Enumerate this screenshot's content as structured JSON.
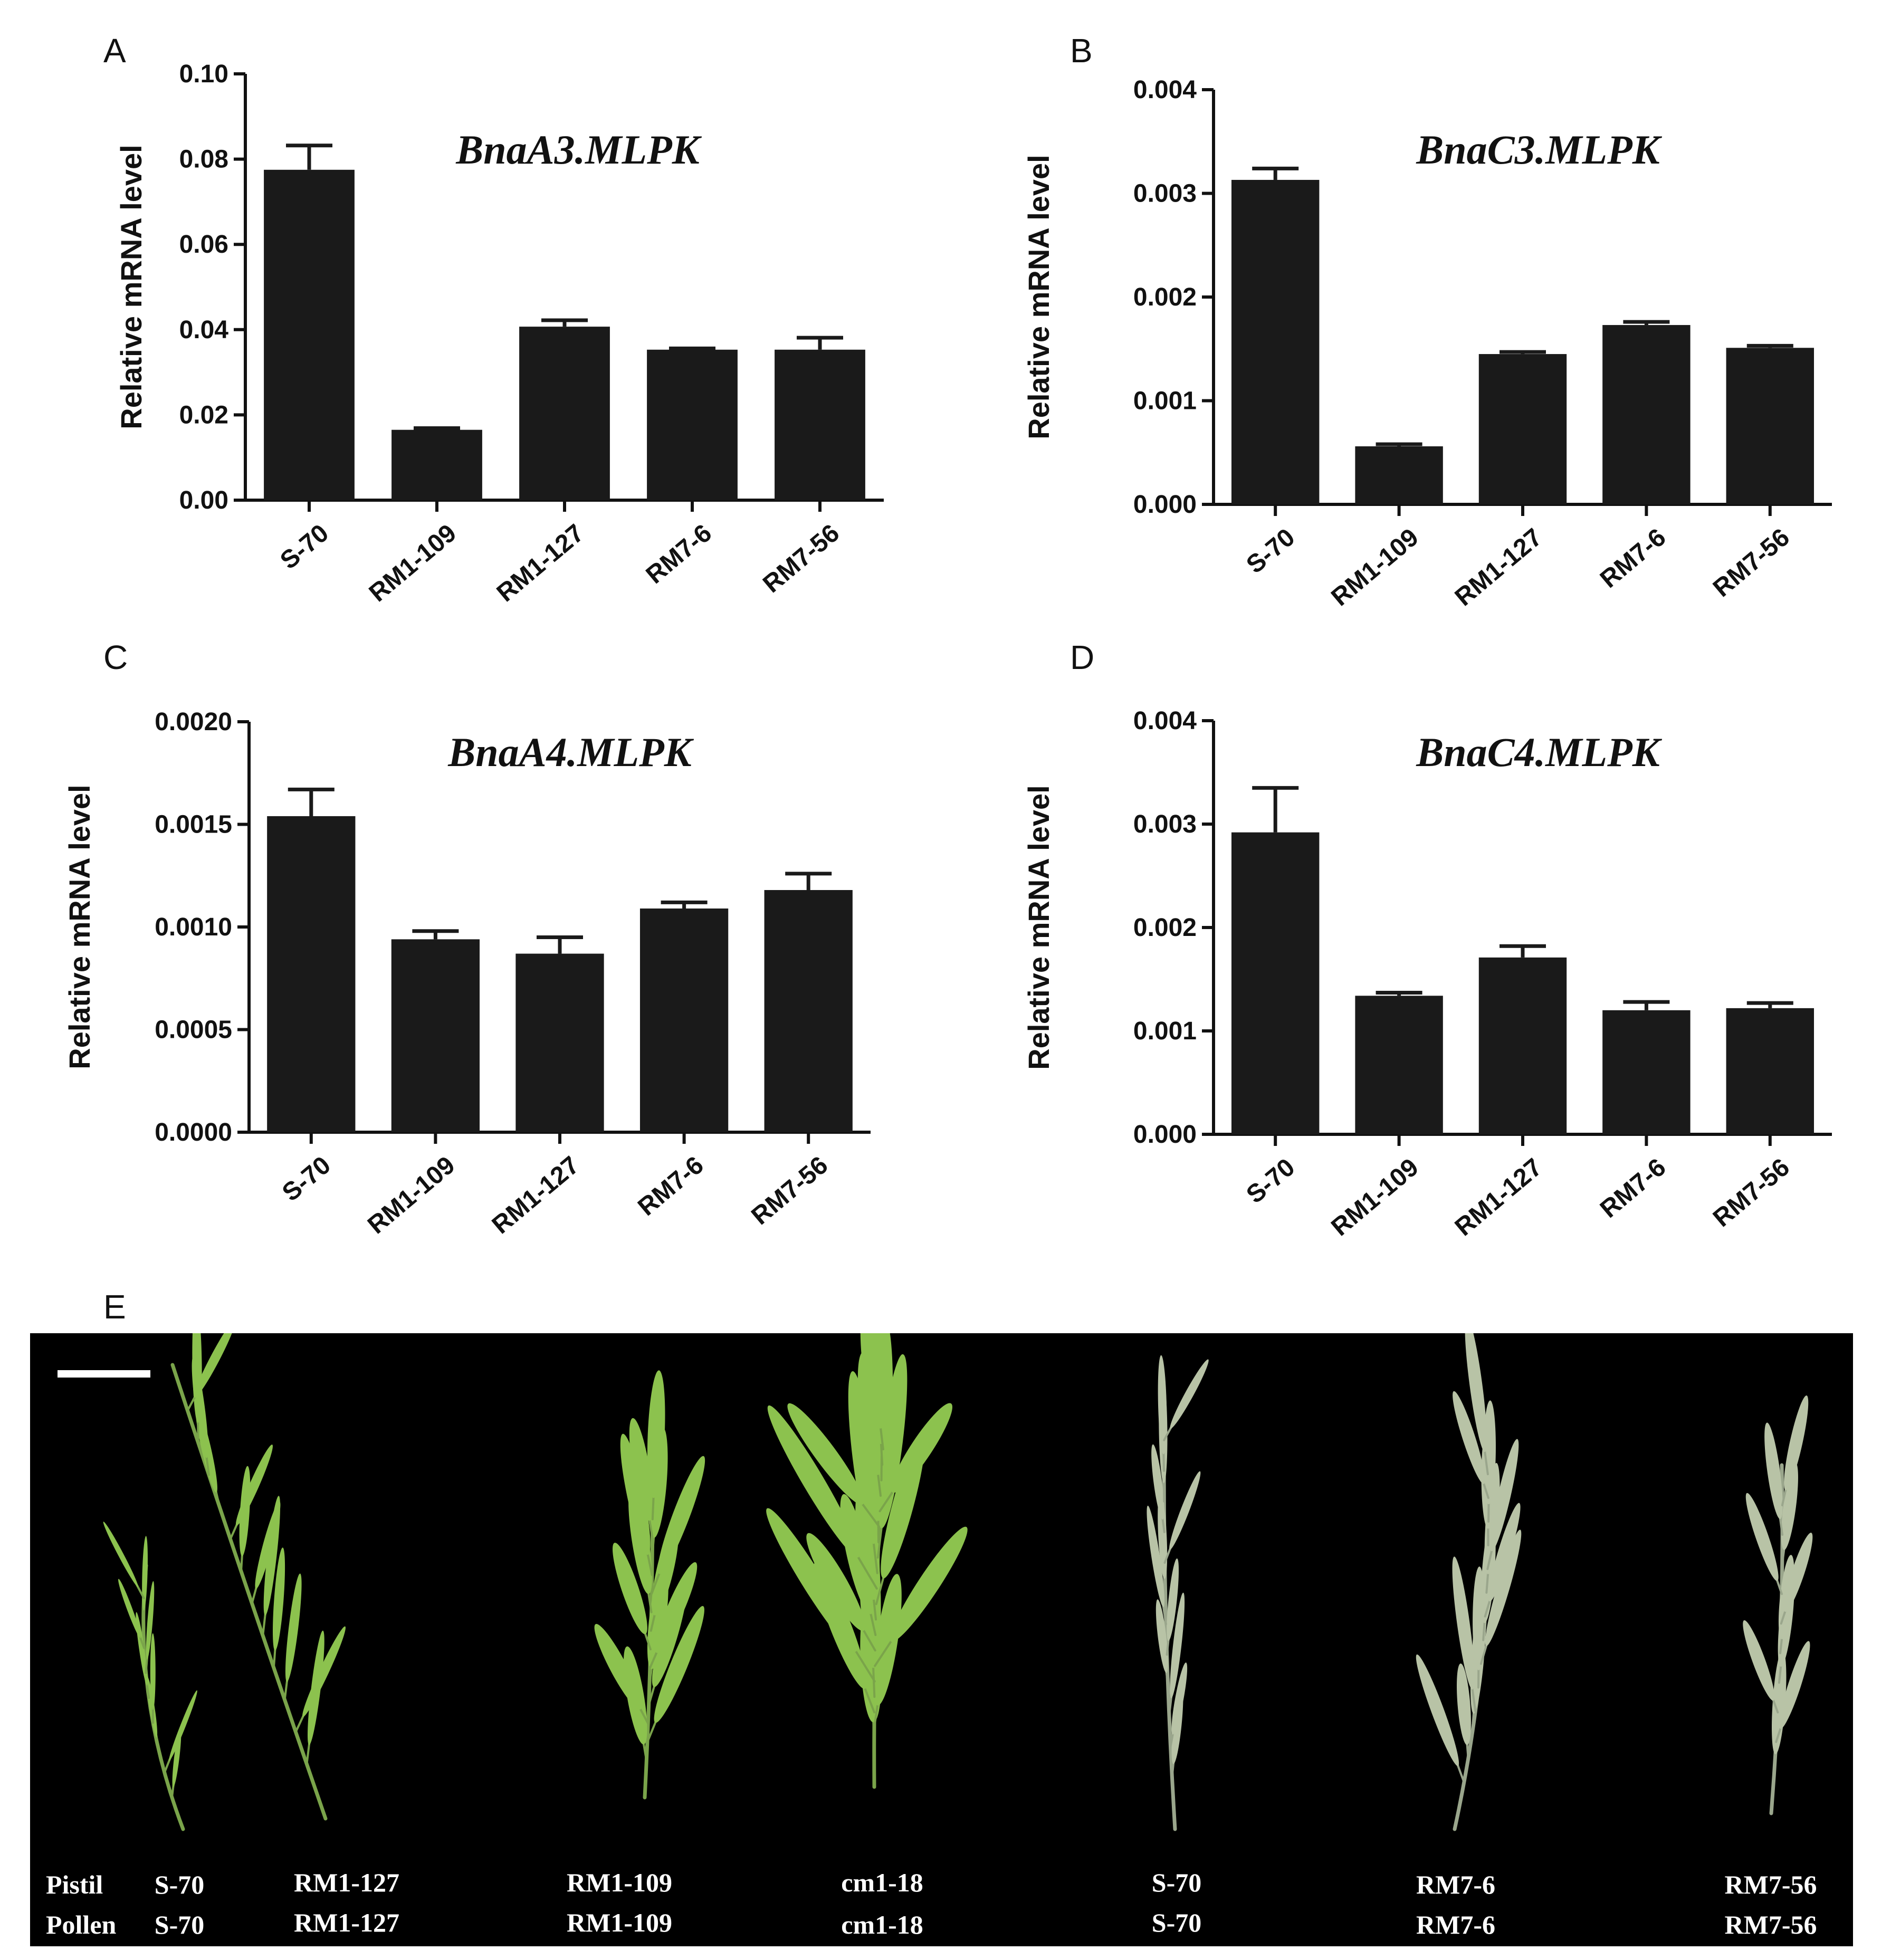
{
  "chart_data": [
    {
      "type": "bar",
      "panel": "A",
      "title": "BnaA3.MLPK",
      "ylabel": "Relative mRNA level",
      "categories": [
        "S-70",
        "RM1-109",
        "RM1-127",
        "RM7-6",
        "RM7-56"
      ],
      "values": [
        0.0775,
        0.0165,
        0.0407,
        0.0353,
        0.0353
      ],
      "errors": [
        0.0057,
        0.0004,
        0.0015,
        0.0003,
        0.0028
      ],
      "ylim": [
        0,
        0.1
      ],
      "yticks": [
        "0.00",
        "0.02",
        "0.04",
        "0.06",
        "0.08",
        "0.10"
      ],
      "grid": false
    },
    {
      "type": "bar",
      "panel": "B",
      "title": "BnaC3.MLPK",
      "ylabel": "Relative mRNA level",
      "categories": [
        "S-70",
        "RM1-109",
        "RM1-127",
        "RM7-6",
        "RM7-56"
      ],
      "values": [
        0.00313,
        0.00056,
        0.00145,
        0.00173,
        0.00151
      ],
      "errors": [
        0.00011,
        2e-05,
        2e-05,
        3e-05,
        2e-05
      ],
      "ylim": [
        0,
        0.004
      ],
      "yticks": [
        "0.000",
        "0.001",
        "0.002",
        "0.003",
        "0.004"
      ],
      "grid": false
    },
    {
      "type": "bar",
      "panel": "C",
      "title": "BnaA4.MLPK",
      "ylabel": "Relative mRNA level",
      "categories": [
        "S-70",
        "RM1-109",
        "RM1-127",
        "RM7-6",
        "RM7-56"
      ],
      "values": [
        0.00154,
        0.00094,
        0.00087,
        0.00109,
        0.00118
      ],
      "errors": [
        0.00013,
        4e-05,
        8e-05,
        3e-05,
        8e-05
      ],
      "ylim": [
        0,
        0.002
      ],
      "yticks": [
        "0.0000",
        "0.0005",
        "0.0010",
        "0.0015",
        "0.0020"
      ],
      "grid": false
    },
    {
      "type": "bar",
      "panel": "D",
      "title": "BnaC4.MLPK",
      "ylabel": "Relative mRNA level",
      "categories": [
        "S-70",
        "RM1-109",
        "RM1-127",
        "RM7-6",
        "RM7-56"
      ],
      "values": [
        0.00292,
        0.00134,
        0.00171,
        0.0012,
        0.00122
      ],
      "errors": [
        0.00043,
        3e-05,
        0.00011,
        8e-05,
        5e-05
      ],
      "ylim": [
        0,
        0.004
      ],
      "yticks": [
        "0.000",
        "0.001",
        "0.002",
        "0.003",
        "0.004"
      ],
      "grid": false
    }
  ],
  "panel_e": {
    "letter": "E",
    "row_labels": [
      "Pistil",
      "Pollen"
    ],
    "columns": [
      {
        "pistil": "S-70",
        "pollen": "S-70"
      },
      {
        "pistil": "RM1-127",
        "pollen": "RM1-127"
      },
      {
        "pistil": "RM1-109",
        "pollen": "RM1-109"
      },
      {
        "pistil": "cm1-18",
        "pollen": "cm1-18"
      },
      {
        "pistil": "S-70",
        "pollen": "S-70"
      },
      {
        "pistil": "RM7-6",
        "pollen": "RM7-6"
      },
      {
        "pistil": "RM7-56",
        "pollen": "RM7-56"
      }
    ],
    "colors": {
      "background": "#000000",
      "pods": "#8cc24e",
      "pale_pods": "#b8c3a6"
    }
  }
}
